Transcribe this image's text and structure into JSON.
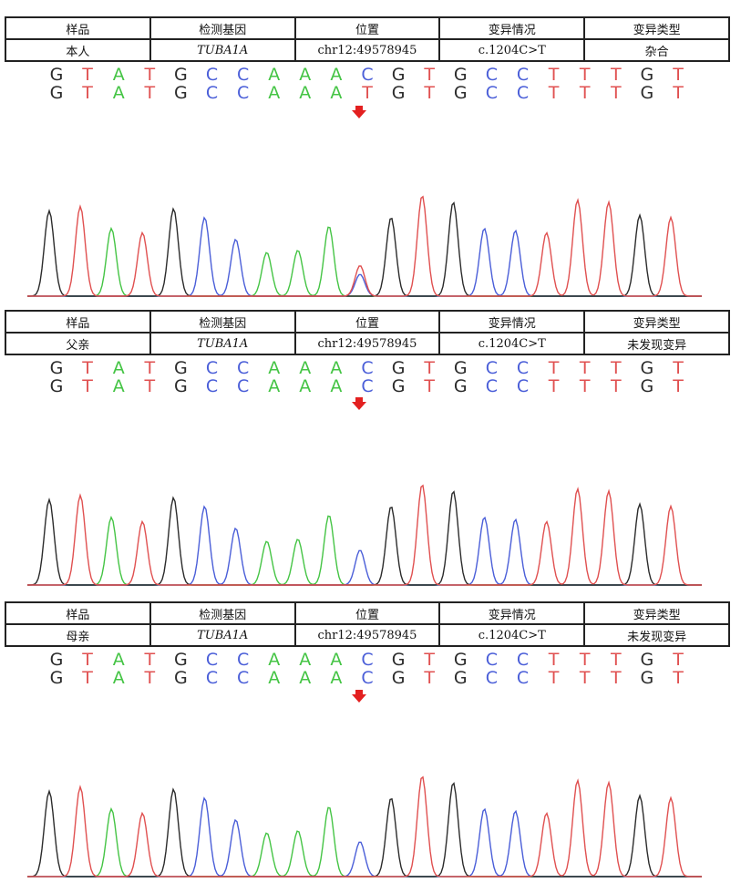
{
  "colors": {
    "G": "#2b2b2b",
    "T": "#e05050",
    "A": "#44c444",
    "C": "#4a5ed8",
    "arrow": "#e32020"
  },
  "headers": [
    "样品",
    "检测基因",
    "位置",
    "变异情况",
    "变异类型"
  ],
  "panels": [
    {
      "sample": "本人",
      "gene": "TUBA1A",
      "position": "chr12:49578945",
      "variant": "c.1204C>T",
      "type": "杂合",
      "seq1": [
        "G",
        "T",
        "A",
        "T",
        "G",
        "C",
        "C",
        "A",
        "A",
        "A",
        "C",
        "G",
        "T",
        "G",
        "C",
        "C",
        "T",
        "T",
        "T",
        "G",
        "T"
      ],
      "seq2": [
        "G",
        "T",
        "A",
        "T",
        "G",
        "C",
        "C",
        "A",
        "A",
        "A",
        "T",
        "G",
        "T",
        "G",
        "C",
        "C",
        "T",
        "T",
        "T",
        "G",
        "T"
      ]
    },
    {
      "sample": "父亲",
      "gene": "TUBA1A",
      "position": "chr12:49578945",
      "variant": "c.1204C>T",
      "type": "未发现变异",
      "seq1": [
        "G",
        "T",
        "A",
        "T",
        "G",
        "C",
        "C",
        "A",
        "A",
        "A",
        "C",
        "G",
        "T",
        "G",
        "C",
        "C",
        "T",
        "T",
        "T",
        "G",
        "T"
      ],
      "seq2": [
        "G",
        "T",
        "A",
        "T",
        "G",
        "C",
        "C",
        "A",
        "A",
        "A",
        "C",
        "G",
        "T",
        "G",
        "C",
        "C",
        "T",
        "T",
        "T",
        "G",
        "T"
      ]
    },
    {
      "sample": "母亲",
      "gene": "TUBA1A",
      "position": "chr12:49578945",
      "variant": "c.1204C>T",
      "type": "未发现变异",
      "seq1": [
        "G",
        "T",
        "A",
        "T",
        "G",
        "C",
        "C",
        "A",
        "A",
        "A",
        "C",
        "G",
        "T",
        "G",
        "C",
        "C",
        "T",
        "T",
        "T",
        "G",
        "T"
      ],
      "seq2": [
        "G",
        "T",
        "A",
        "T",
        "G",
        "C",
        "C",
        "A",
        "A",
        "A",
        "C",
        "G",
        "T",
        "G",
        "C",
        "C",
        "T",
        "T",
        "T",
        "G",
        "T"
      ]
    }
  ]
}
